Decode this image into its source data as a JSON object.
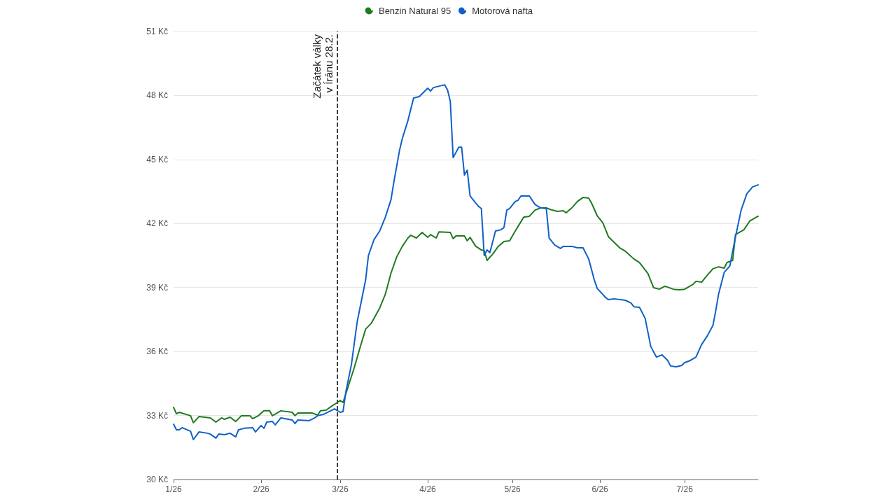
{
  "chart_data": {
    "type": "line",
    "legend": "top",
    "grid": "y",
    "marker": "none",
    "line_style": "solid",
    "xlim": [
      "2026-01-01",
      "2026-07-27"
    ],
    "xticks": [
      {
        "value": "2026-01-01",
        "label": "1/26"
      },
      {
        "value": "2026-02-01",
        "label": "2/26"
      },
      {
        "value": "2026-03-01",
        "label": "3/26"
      },
      {
        "value": "2026-04-01",
        "label": "4/26"
      },
      {
        "value": "2026-05-01",
        "label": "5/26"
      },
      {
        "value": "2026-06-01",
        "label": "6/26"
      },
      {
        "value": "2026-07-01",
        "label": "7/26"
      }
    ],
    "ylim": [
      30,
      51
    ],
    "yticks": [
      {
        "value": 30,
        "label": "30 Kč"
      },
      {
        "value": 33,
        "label": "33 Kč"
      },
      {
        "value": 36,
        "label": "36 Kč"
      },
      {
        "value": 39,
        "label": "39 Kč"
      },
      {
        "value": 42,
        "label": "42 Kč"
      },
      {
        "value": 45,
        "label": "45 Kč"
      },
      {
        "value": 48,
        "label": "48 Kč"
      },
      {
        "value": 51,
        "label": "51 Kč"
      }
    ],
    "ref_lines": [
      {
        "axis": "x",
        "value": "2026-02-28",
        "label": "Začátek války\nv Íránu 28.2.",
        "color": "#000000",
        "line_style": "dashed"
      }
    ],
    "series": [
      {
        "name": "Benzin Natural 95",
        "color": "#217a21",
        "x": [
          "2026-01-01",
          "2026-01-02",
          "2026-01-03",
          "2026-01-07",
          "2026-01-08",
          "2026-01-10",
          "2026-01-14",
          "2026-01-16",
          "2026-01-18",
          "2026-01-19",
          "2026-01-21",
          "2026-01-23",
          "2026-01-25",
          "2026-01-28",
          "2026-01-29",
          "2026-01-31",
          "2026-02-02",
          "2026-02-04",
          "2026-02-05",
          "2026-02-08",
          "2026-02-12",
          "2026-02-13",
          "2026-02-14",
          "2026-02-19",
          "2026-02-21",
          "2026-02-22",
          "2026-02-24",
          "2026-02-26",
          "2026-02-28",
          "2026-03-01",
          "2026-03-02",
          "2026-03-04",
          "2026-03-06",
          "2026-03-08",
          "2026-03-10",
          "2026-03-12",
          "2026-03-15",
          "2026-03-17",
          "2026-03-19",
          "2026-03-21",
          "2026-03-23",
          "2026-03-25",
          "2026-03-26",
          "2026-03-28",
          "2026-03-30",
          "2026-04-01",
          "2026-04-02",
          "2026-04-04",
          "2026-04-05",
          "2026-04-09",
          "2026-04-10",
          "2026-04-11",
          "2026-04-14",
          "2026-04-15",
          "2026-04-16",
          "2026-04-18",
          "2026-04-20",
          "2026-04-21",
          "2026-04-22",
          "2026-04-24",
          "2026-04-26",
          "2026-04-28",
          "2026-04-30",
          "2026-05-02",
          "2026-05-05",
          "2026-05-07",
          "2026-05-09",
          "2026-05-11",
          "2026-05-13",
          "2026-05-15",
          "2026-05-17",
          "2026-05-19",
          "2026-05-20",
          "2026-05-22",
          "2026-05-24",
          "2026-05-26",
          "2026-05-28",
          "2026-05-29",
          "2026-05-31",
          "2026-06-02",
          "2026-06-04",
          "2026-06-08",
          "2026-06-10",
          "2026-06-13",
          "2026-06-15",
          "2026-06-18",
          "2026-06-20",
          "2026-06-22",
          "2026-06-24",
          "2026-06-27",
          "2026-06-29",
          "2026-07-01",
          "2026-07-04",
          "2026-07-05",
          "2026-07-07",
          "2026-07-09",
          "2026-07-11",
          "2026-07-13",
          "2026-07-15",
          "2026-07-16",
          "2026-07-18",
          "2026-07-19",
          "2026-07-22",
          "2026-07-24",
          "2026-07-26",
          "2026-07-27"
        ],
        "values": [
          33.38,
          33.08,
          33.15,
          32.99,
          32.66,
          32.95,
          32.89,
          32.69,
          32.89,
          32.82,
          32.92,
          32.72,
          32.99,
          32.99,
          32.85,
          32.99,
          33.22,
          33.22,
          32.99,
          33.22,
          33.15,
          32.99,
          33.12,
          33.12,
          33.02,
          33.22,
          33.25,
          33.44,
          33.61,
          33.71,
          33.61,
          34.43,
          35.25,
          36.17,
          37.05,
          37.32,
          38.04,
          38.69,
          39.68,
          40.43,
          40.93,
          41.32,
          41.45,
          41.32,
          41.58,
          41.35,
          41.48,
          41.32,
          41.61,
          41.58,
          41.29,
          41.42,
          41.42,
          41.19,
          41.35,
          40.93,
          40.76,
          40.73,
          40.27,
          40.56,
          40.93,
          41.16,
          41.19,
          41.65,
          42.3,
          42.34,
          42.63,
          42.73,
          42.73,
          42.63,
          42.57,
          42.6,
          42.5,
          42.73,
          43.03,
          43.22,
          43.19,
          42.96,
          42.37,
          42.04,
          41.38,
          40.86,
          40.7,
          40.34,
          40.17,
          39.65,
          38.99,
          38.92,
          39.06,
          38.92,
          38.89,
          38.92,
          39.15,
          39.29,
          39.25,
          39.58,
          39.88,
          39.97,
          39.91,
          40.17,
          40.27,
          41.48,
          41.71,
          42.11,
          42.27,
          42.34
        ]
      },
      {
        "name": "Motorová nafta",
        "color": "#1060c8",
        "x": [
          "2026-01-01",
          "2026-01-02",
          "2026-01-03",
          "2026-01-04",
          "2026-01-07",
          "2026-01-08",
          "2026-01-10",
          "2026-01-13",
          "2026-01-14",
          "2026-01-16",
          "2026-01-17",
          "2026-01-19",
          "2026-01-21",
          "2026-01-23",
          "2026-01-24",
          "2026-01-26",
          "2026-01-29",
          "2026-01-30",
          "2026-02-01",
          "2026-02-02",
          "2026-02-03",
          "2026-02-05",
          "2026-02-06",
          "2026-02-08",
          "2026-02-12",
          "2026-02-13",
          "2026-02-14",
          "2026-02-18",
          "2026-02-20",
          "2026-02-21",
          "2026-02-23",
          "2026-02-25",
          "2026-02-27",
          "2026-03-01",
          "2026-03-02",
          "2026-03-03",
          "2026-03-05",
          "2026-03-07",
          "2026-03-08",
          "2026-03-10",
          "2026-03-11",
          "2026-03-13",
          "2026-03-15",
          "2026-03-17",
          "2026-03-19",
          "2026-03-20",
          "2026-03-22",
          "2026-03-23",
          "2026-03-25",
          "2026-03-27",
          "2026-03-29",
          "2026-03-31",
          "2026-04-01",
          "2026-04-02",
          "2026-04-03",
          "2026-04-06",
          "2026-04-07",
          "2026-04-08",
          "2026-04-09",
          "2026-04-10",
          "2026-04-12",
          "2026-04-13",
          "2026-04-14",
          "2026-04-15",
          "2026-04-16",
          "2026-04-18",
          "2026-04-19",
          "2026-04-20",
          "2026-04-21",
          "2026-04-22",
          "2026-04-23",
          "2026-04-25",
          "2026-04-27",
          "2026-04-28",
          "2026-04-29",
          "2026-04-30",
          "2026-05-02",
          "2026-05-03",
          "2026-05-04",
          "2026-05-07",
          "2026-05-09",
          "2026-05-11",
          "2026-05-13",
          "2026-05-14",
          "2026-05-16",
          "2026-05-18",
          "2026-05-19",
          "2026-05-22",
          "2026-05-24",
          "2026-05-26",
          "2026-05-28",
          "2026-05-30",
          "2026-05-31",
          "2026-06-03",
          "2026-06-04",
          "2026-06-06",
          "2026-06-10",
          "2026-06-12",
          "2026-06-13",
          "2026-06-15",
          "2026-06-17",
          "2026-06-19",
          "2026-06-21",
          "2026-06-23",
          "2026-06-25",
          "2026-06-26",
          "2026-06-28",
          "2026-06-30",
          "2026-07-01",
          "2026-07-03",
          "2026-07-05",
          "2026-07-07",
          "2026-07-09",
          "2026-07-11",
          "2026-07-12",
          "2026-07-13",
          "2026-07-15",
          "2026-07-17",
          "2026-07-19",
          "2026-07-21",
          "2026-07-23",
          "2026-07-25",
          "2026-07-27"
        ],
        "values": [
          32.59,
          32.33,
          32.33,
          32.43,
          32.26,
          31.87,
          32.23,
          32.17,
          32.13,
          31.94,
          32.13,
          32.1,
          32.17,
          32.0,
          32.33,
          32.4,
          32.43,
          32.23,
          32.53,
          32.4,
          32.69,
          32.72,
          32.56,
          32.89,
          32.79,
          32.62,
          32.79,
          32.76,
          32.89,
          32.99,
          33.05,
          33.18,
          33.31,
          33.15,
          33.18,
          34.1,
          35.41,
          37.38,
          38.04,
          39.35,
          40.5,
          41.25,
          41.65,
          42.3,
          43.12,
          43.94,
          45.42,
          45.98,
          46.83,
          47.88,
          47.95,
          48.21,
          48.34,
          48.21,
          48.37,
          48.47,
          48.5,
          48.27,
          47.72,
          45.09,
          45.58,
          45.58,
          44.27,
          44.5,
          43.29,
          42.96,
          42.8,
          42.7,
          40.5,
          40.76,
          40.63,
          41.65,
          41.71,
          41.81,
          42.63,
          42.7,
          43.03,
          43.09,
          43.29,
          43.29,
          42.89,
          42.73,
          42.7,
          41.32,
          40.99,
          40.83,
          40.93,
          40.93,
          40.86,
          40.86,
          40.34,
          39.35,
          38.96,
          38.53,
          38.43,
          38.47,
          38.4,
          38.27,
          38.1,
          38.07,
          37.55,
          36.23,
          35.74,
          35.84,
          35.58,
          35.32,
          35.28,
          35.35,
          35.48,
          35.58,
          35.74,
          36.33,
          36.73,
          37.22,
          37.91,
          38.69,
          39.71,
          40.01,
          41.38,
          42.63,
          43.39,
          43.71,
          43.81
        ]
      }
    ]
  }
}
